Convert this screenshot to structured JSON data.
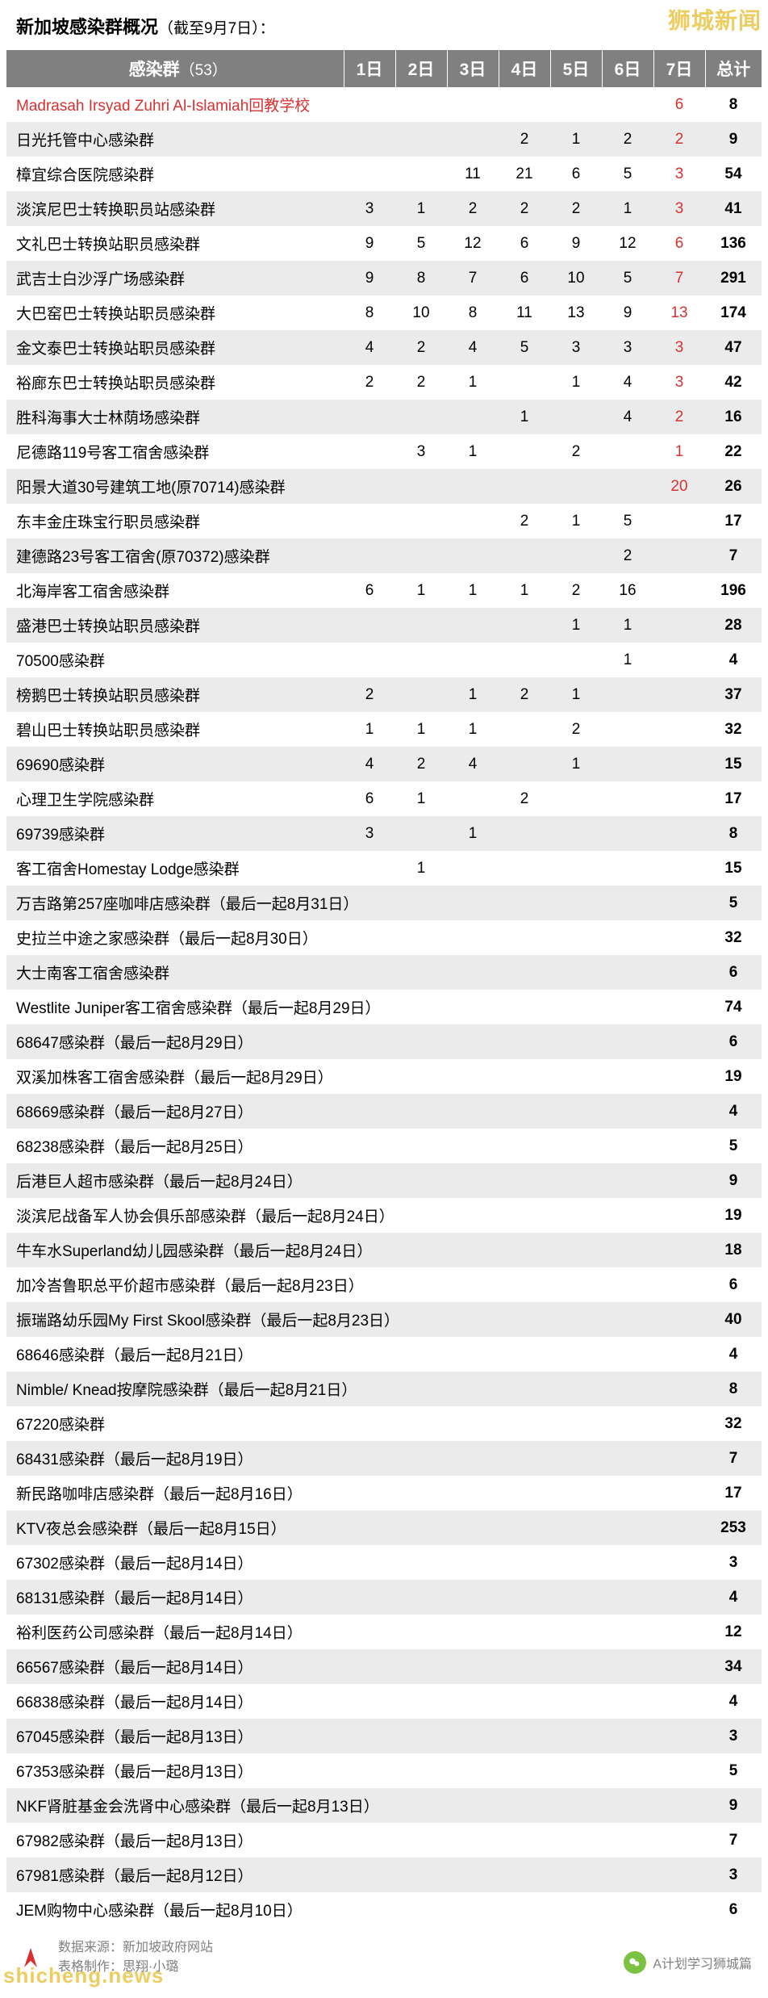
{
  "watermarks": {
    "top": "狮城新闻",
    "bottom": "shicheng.news"
  },
  "title": {
    "main": "新加坡感染群概况",
    "note": "（截至9月7日）："
  },
  "headers": {
    "cluster": "感染群",
    "cluster_count": "（53）",
    "days": [
      "1日",
      "2日",
      "3日",
      "4日",
      "5日",
      "6日",
      "7日"
    ],
    "total": "总计"
  },
  "rows": [
    {
      "name": "Madrasah Irsyad Zuhri Al-Islamiah回教学校",
      "name_red": true,
      "days": [
        "",
        "",
        "",
        "",
        "",
        "",
        "6"
      ],
      "day7_red": true,
      "total": "8"
    },
    {
      "name": "日光托管中心感染群",
      "days": [
        "",
        "",
        "",
        "2",
        "1",
        "2",
        "2"
      ],
      "day7_red": true,
      "total": "9"
    },
    {
      "name": "樟宜综合医院感染群",
      "days": [
        "",
        "",
        "11",
        "21",
        "6",
        "5",
        "3"
      ],
      "day7_red": true,
      "total": "54"
    },
    {
      "name": "淡滨尼巴士转换职员站感染群",
      "days": [
        "3",
        "1",
        "2",
        "2",
        "2",
        "1",
        "3"
      ],
      "day7_red": true,
      "total": "41"
    },
    {
      "name": "文礼巴士转换站职员感染群",
      "days": [
        "9",
        "5",
        "12",
        "6",
        "9",
        "12",
        "6"
      ],
      "day7_red": true,
      "total": "136"
    },
    {
      "name": "武吉士白沙浮广场感染群",
      "days": [
        "9",
        "8",
        "7",
        "6",
        "10",
        "5",
        "7"
      ],
      "day7_red": true,
      "total": "291"
    },
    {
      "name": "大巴窑巴士转换站职员感染群",
      "days": [
        "8",
        "10",
        "8",
        "11",
        "13",
        "9",
        "13"
      ],
      "day7_red": true,
      "total": "174"
    },
    {
      "name": "金文泰巴士转换站职员感染群",
      "days": [
        "4",
        "2",
        "4",
        "5",
        "3",
        "3",
        "3"
      ],
      "day7_red": true,
      "total": "47"
    },
    {
      "name": "裕廊东巴士转换站职员感染群",
      "days": [
        "2",
        "2",
        "1",
        "",
        "1",
        "4",
        "3"
      ],
      "day7_red": true,
      "total": "42"
    },
    {
      "name": "胜科海事大士林荫场感染群",
      "days": [
        "",
        "",
        "",
        "1",
        "",
        "4",
        "2"
      ],
      "day7_red": true,
      "total": "16"
    },
    {
      "name": "尼德路119号客工宿舍感染群",
      "days": [
        "",
        "3",
        "1",
        "",
        "2",
        "",
        "1"
      ],
      "day7_red": true,
      "total": "22"
    },
    {
      "name": "阳景大道30号建筑工地(原70714)感染群",
      "days": [
        "",
        "",
        "",
        "",
        "",
        "",
        "20"
      ],
      "day7_red": true,
      "total": "26"
    },
    {
      "name": "东丰金庄珠宝行职员感染群",
      "days": [
        "",
        "",
        "",
        "2",
        "1",
        "5",
        ""
      ],
      "total": "17"
    },
    {
      "name": "建德路23号客工宿舍(原70372)感染群",
      "days": [
        "",
        "",
        "",
        "",
        "",
        "2",
        ""
      ],
      "total": "7"
    },
    {
      "name": "北海岸客工宿舍感染群",
      "days": [
        "6",
        "1",
        "1",
        "1",
        "2",
        "16",
        ""
      ],
      "total": "196"
    },
    {
      "name": "盛港巴士转换站职员感染群",
      "days": [
        "",
        "",
        "",
        "",
        "1",
        "1",
        ""
      ],
      "total": "28"
    },
    {
      "name": "70500感染群",
      "days": [
        "",
        "",
        "",
        "",
        "",
        "1",
        ""
      ],
      "total": "4"
    },
    {
      "name": "榜鹅巴士转换站职员感染群",
      "days": [
        "2",
        "",
        "1",
        "2",
        "1",
        "",
        ""
      ],
      "total": "37"
    },
    {
      "name": "碧山巴士转换站职员感染群",
      "days": [
        "1",
        "1",
        "1",
        "",
        "2",
        "",
        ""
      ],
      "total": "32"
    },
    {
      "name": "69690感染群",
      "days": [
        "4",
        "2",
        "4",
        "",
        "1",
        "",
        ""
      ],
      "total": "15"
    },
    {
      "name": "心理卫生学院感染群",
      "days": [
        "6",
        "1",
        "",
        "2",
        "",
        "",
        ""
      ],
      "total": "17"
    },
    {
      "name": "69739感染群",
      "days": [
        "3",
        "",
        "1",
        "",
        "",
        "",
        ""
      ],
      "total": "8"
    },
    {
      "name": "客工宿舍Homestay Lodge感染群",
      "days": [
        "",
        "1",
        "",
        "",
        "",
        "",
        ""
      ],
      "total": "15"
    },
    {
      "name": "万吉路第257座咖啡店感染群（最后一起8月31日）",
      "span": true,
      "total": "5"
    },
    {
      "name": "史拉兰中途之家感染群（最后一起8月30日）",
      "span": true,
      "total": "32"
    },
    {
      "name": "大士南客工宿舍感染群",
      "span": true,
      "total": "6"
    },
    {
      "name": "Westlite Juniper客工宿舍感染群（最后一起8月29日）",
      "span": true,
      "total": "74"
    },
    {
      "name": "68647感染群（最后一起8月29日）",
      "span": true,
      "total": "6"
    },
    {
      "name": "双溪加株客工宿舍感染群（最后一起8月29日）",
      "span": true,
      "total": "19"
    },
    {
      "name": "68669感染群（最后一起8月27日）",
      "span": true,
      "total": "4"
    },
    {
      "name": "68238感染群（最后一起8月25日）",
      "span": true,
      "total": "5"
    },
    {
      "name": "后港巨人超市感染群（最后一起8月24日）",
      "span": true,
      "total": "9"
    },
    {
      "name": "淡滨尼战备军人协会俱乐部感染群（最后一起8月24日）",
      "span": true,
      "total": "19"
    },
    {
      "name": "牛车水Superland幼儿园感染群（最后一起8月24日）",
      "span": true,
      "total": "18"
    },
    {
      "name": "加冷峇鲁职总平价超市感染群（最后一起8月23日）",
      "span": true,
      "total": "6"
    },
    {
      "name": "振瑞路幼乐园My First Skool感染群（最后一起8月23日）",
      "span": true,
      "total": "40"
    },
    {
      "name": "68646感染群（最后一起8月21日）",
      "span": true,
      "total": "4"
    },
    {
      "name": "Nimble/ Knead按摩院感染群（最后一起8月21日）",
      "span": true,
      "total": "8"
    },
    {
      "name": "67220感染群",
      "span": true,
      "total": "32"
    },
    {
      "name": "68431感染群（最后一起8月19日）",
      "span": true,
      "total": "7"
    },
    {
      "name": "新民路咖啡店感染群（最后一起8月16日）",
      "span": true,
      "total": "17"
    },
    {
      "name": "KTV夜总会感染群（最后一起8月15日）",
      "span": true,
      "total": "253"
    },
    {
      "name": "67302感染群（最后一起8月14日）",
      "span": true,
      "total": "3"
    },
    {
      "name": "68131感染群（最后一起8月14日）",
      "span": true,
      "total": "4"
    },
    {
      "name": "裕利医药公司感染群（最后一起8月14日）",
      "span": true,
      "total": "12"
    },
    {
      "name": "66567感染群（最后一起8月14日）",
      "span": true,
      "total": "34"
    },
    {
      "name": "66838感染群（最后一起8月14日）",
      "span": true,
      "total": "4"
    },
    {
      "name": "67045感染群（最后一起8月13日）",
      "span": true,
      "total": "3"
    },
    {
      "name": "67353感染群（最后一起8月13日）",
      "span": true,
      "total": "5"
    },
    {
      "name": "NKF肾脏基金会洗肾中心感染群（最后一起8月13日）",
      "span": true,
      "total": "9"
    },
    {
      "name": "67982感染群（最后一起8月13日）",
      "span": true,
      "total": "7"
    },
    {
      "name": "67981感染群（最后一起8月12日）",
      "span": true,
      "total": "3"
    },
    {
      "name": "JEM购物中心感染群（最后一起8月10日）",
      "span": true,
      "total": "6"
    }
  ],
  "footer": {
    "source_label": "数据来源：",
    "source_value": "新加坡政府网站",
    "creator_label": "表格制作：",
    "creator_value": "思翔·小璐",
    "right_label": "A计划学习狮城篇"
  },
  "colors": {
    "header_bg": "#808080",
    "header_text": "#ffffff",
    "row_even": "#ebebeb",
    "row_odd": "#ffffff",
    "red": "#d93030",
    "text": "#000000",
    "footer_text": "#808080",
    "watermark": "#e8c547"
  }
}
